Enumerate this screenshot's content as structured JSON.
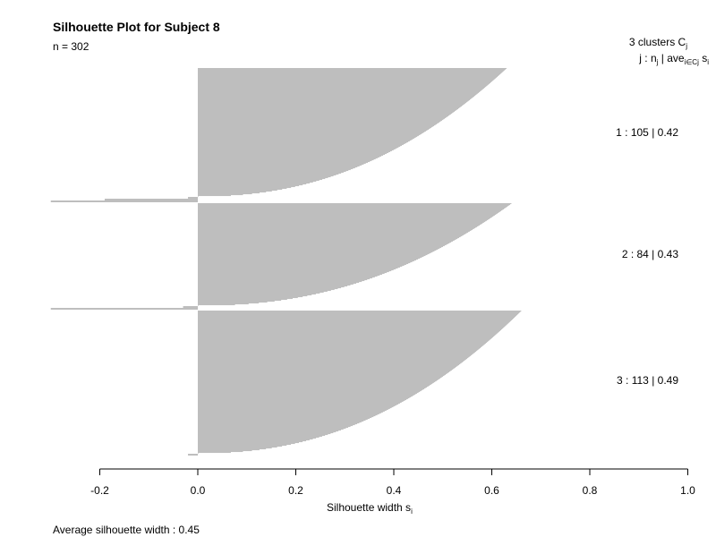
{
  "title": "Silhouette Plot for Subject 8",
  "n_label": "n = 302",
  "legend": {
    "header_clusters": "3  clusters  C",
    "header_clusters_sub": "j",
    "header_cols": "j :  n",
    "header_cols_sub1": "j",
    "header_cols_mid": " | ave",
    "header_cols_sub2": "i∈Cj",
    "header_cols_end": "  s",
    "header_cols_sub3": "i"
  },
  "x_axis_label": "Silhouette width s",
  "x_axis_label_sub": "i",
  "average_label": "Average silhouette width :  0.45",
  "bar_color": "#bebebe",
  "chart_data": {
    "type": "bar",
    "orientation": "horizontal",
    "xlabel": "Silhouette width s_i",
    "xlim": [
      -0.2,
      1.0
    ],
    "xticks": [
      -0.2,
      0.0,
      0.2,
      0.4,
      0.6,
      0.8,
      1.0
    ],
    "xtick_labels": [
      "-0.2",
      "0.0",
      "0.2",
      "0.4",
      "0.6",
      "0.8",
      "1.0"
    ],
    "n": 302,
    "average_silhouette_width": 0.45,
    "clusters": [
      {
        "id": 1,
        "size": 105,
        "avg": 0.42,
        "label": "1 :   105  |  0.42",
        "max": 0.63,
        "min_positive": 0.0,
        "negatives": [
          -0.02,
          -0.19,
          -0.3
        ]
      },
      {
        "id": 2,
        "size": 84,
        "avg": 0.43,
        "label": "2 :   84  |  0.43",
        "max": 0.64,
        "min_positive": 0.0,
        "negatives": [
          -0.03,
          -0.3
        ]
      },
      {
        "id": 3,
        "size": 113,
        "avg": 0.49,
        "label": "3 :   113  |  0.49",
        "max": 0.66,
        "min_positive": 0.0,
        "negatives": [
          -0.02
        ]
      }
    ]
  }
}
